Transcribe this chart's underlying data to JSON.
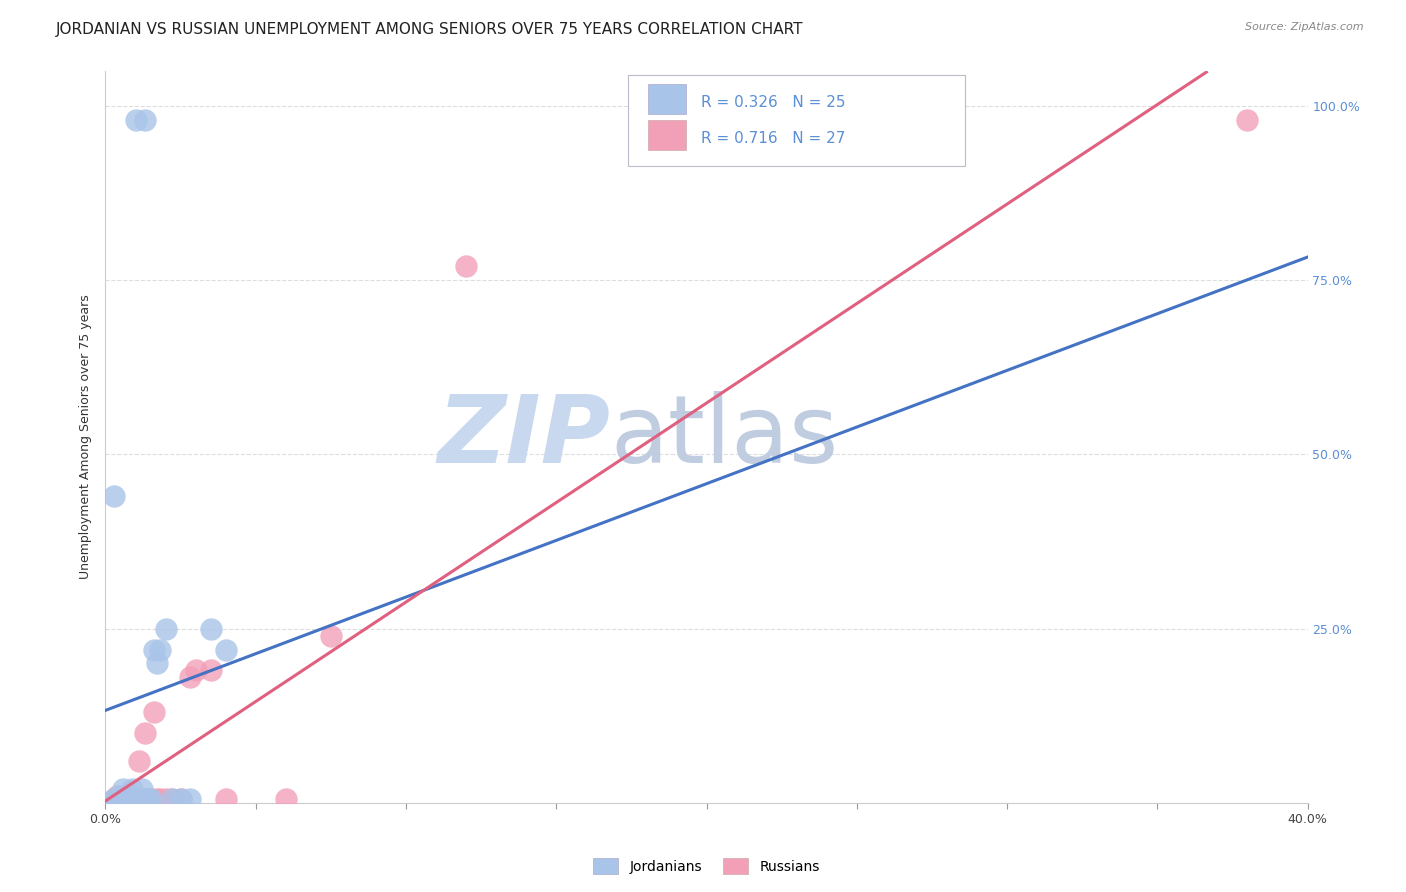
{
  "title": "JORDANIAN VS RUSSIAN UNEMPLOYMENT AMONG SENIORS OVER 75 YEARS CORRELATION CHART",
  "source": "Source: ZipAtlas.com",
  "ylabel": "Unemployment Among Seniors over 75 years",
  "xlim": [
    0.0,
    0.4
  ],
  "ylim": [
    0.0,
    1.05
  ],
  "xticks": [
    0.0,
    0.05,
    0.1,
    0.15,
    0.2,
    0.25,
    0.3,
    0.35,
    0.4
  ],
  "yticks": [
    0.0,
    0.25,
    0.5,
    0.75,
    1.0
  ],
  "xtick_labels": [
    "0.0%",
    "",
    "",
    "",
    "",
    "",
    "",
    "",
    "40.0%"
  ],
  "right_ytick_labels": [
    "",
    "25.0%",
    "50.0%",
    "75.0%",
    "100.0%"
  ],
  "legend_R_jordan": "0.326",
  "legend_N_jordan": "25",
  "legend_R_russian": "0.716",
  "legend_N_russian": "27",
  "jordan_color": "#a8c4e8",
  "russian_color": "#f2a0b8",
  "jordan_line_color": "#4472c4",
  "russian_line_color": "#e06080",
  "jordan_scatter_x": [
    0.003,
    0.01,
    0.013,
    0.003,
    0.005,
    0.005,
    0.006,
    0.007,
    0.008,
    0.009,
    0.012,
    0.013,
    0.014,
    0.015,
    0.016,
    0.017,
    0.018,
    0.02,
    0.022,
    0.025,
    0.028,
    0.035,
    0.04,
    0.003,
    0.005
  ],
  "jordan_scatter_y": [
    0.005,
    0.98,
    0.98,
    0.44,
    0.005,
    0.01,
    0.02,
    0.005,
    0.005,
    0.02,
    0.02,
    0.005,
    0.005,
    0.005,
    0.22,
    0.2,
    0.22,
    0.25,
    0.005,
    0.005,
    0.005,
    0.25,
    0.22,
    0.005,
    0.005
  ],
  "russian_scatter_x": [
    0.003,
    0.004,
    0.005,
    0.006,
    0.007,
    0.008,
    0.009,
    0.01,
    0.011,
    0.012,
    0.013,
    0.014,
    0.015,
    0.016,
    0.017,
    0.018,
    0.02,
    0.022,
    0.025,
    0.028,
    0.03,
    0.035,
    0.04,
    0.06,
    0.075,
    0.12,
    0.38
  ],
  "russian_scatter_y": [
    0.005,
    0.01,
    0.005,
    0.005,
    0.005,
    0.005,
    0.005,
    0.005,
    0.06,
    0.005,
    0.1,
    0.005,
    0.005,
    0.13,
    0.005,
    0.005,
    0.005,
    0.005,
    0.005,
    0.18,
    0.19,
    0.19,
    0.005,
    0.005,
    0.24,
    0.77,
    0.98
  ],
  "watermark_zip": "ZIP",
  "watermark_atlas": "atlas",
  "watermark_color_zip": "#c8d8ee",
  "watermark_color_atlas": "#c0cce0",
  "background_color": "#ffffff",
  "grid_color": "#dddddd",
  "title_fontsize": 11,
  "axis_label_fontsize": 9,
  "tick_fontsize": 9,
  "right_tick_color": "#5b8fd6",
  "legend_box_color": "#f0f0f8"
}
